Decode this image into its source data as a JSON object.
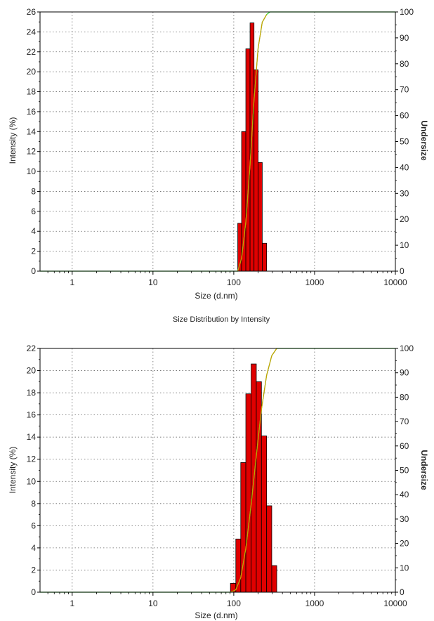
{
  "charts": [
    {
      "ylabel_left": "Intensity (%)",
      "ylabel_right": "Undersize",
      "xlabel": "Size (d.nm)",
      "caption": "Size Distribution by Intensity"
    },
    {
      "ylabel_left": "Intensity (%)",
      "ylabel_right": "Undersize",
      "xlabel": "Size (d.nm)",
      "caption": ""
    }
  ],
  "colors": {
    "bar": "#e00000",
    "bar_edge": "#000000",
    "cumulative": "#33dd33",
    "fit": "#c8a000"
  },
  "chart_data": [
    {
      "type": "bar",
      "x_scale": "log",
      "xlim": [
        0.4,
        10000
      ],
      "x_ticks": [
        1,
        10,
        100,
        1000,
        10000
      ],
      "ylim_left": [
        0,
        26
      ],
      "y_ticks_left": [
        0,
        2,
        4,
        6,
        8,
        10,
        12,
        14,
        16,
        18,
        20,
        22,
        24,
        26
      ],
      "ylim_right": [
        0,
        100
      ],
      "y_ticks_right": [
        0,
        10,
        20,
        30,
        40,
        50,
        60,
        70,
        80,
        90,
        100
      ],
      "grid": true,
      "bins": [
        {
          "x0": 112,
          "x1": 125,
          "value": 4.8
        },
        {
          "x0": 125,
          "x1": 141,
          "value": 14.0
        },
        {
          "x0": 141,
          "x1": 159,
          "value": 22.3
        },
        {
          "x0": 159,
          "x1": 178,
          "value": 24.9
        },
        {
          "x0": 178,
          "x1": 200,
          "value": 20.2
        },
        {
          "x0": 200,
          "x1": 225,
          "value": 10.9
        },
        {
          "x0": 225,
          "x1": 255,
          "value": 2.8
        }
      ],
      "cumulative": {
        "x": [
          0.4,
          112,
          125,
          141,
          159,
          178,
          200,
          225,
          255,
          280,
          320,
          10000
        ],
        "y": [
          0,
          0,
          5,
          19,
          41,
          66,
          86,
          96,
          99,
          100,
          100,
          100
        ]
      }
    },
    {
      "type": "bar",
      "x_scale": "log",
      "xlim": [
        0.4,
        10000
      ],
      "x_ticks": [
        1,
        10,
        100,
        1000,
        10000
      ],
      "ylim_left": [
        0,
        22
      ],
      "y_ticks_left": [
        0,
        2,
        4,
        6,
        8,
        10,
        12,
        14,
        16,
        18,
        20,
        22
      ],
      "ylim_right": [
        0,
        100
      ],
      "y_ticks_right": [
        0,
        10,
        20,
        30,
        40,
        50,
        60,
        70,
        80,
        90,
        100
      ],
      "grid": true,
      "bins": [
        {
          "x0": 91,
          "x1": 106,
          "value": 0.8
        },
        {
          "x0": 106,
          "x1": 122,
          "value": 4.8
        },
        {
          "x0": 122,
          "x1": 141,
          "value": 11.7
        },
        {
          "x0": 141,
          "x1": 164,
          "value": 17.9
        },
        {
          "x0": 164,
          "x1": 190,
          "value": 20.6
        },
        {
          "x0": 190,
          "x1": 220,
          "value": 19.0
        },
        {
          "x0": 220,
          "x1": 255,
          "value": 14.1
        },
        {
          "x0": 255,
          "x1": 295,
          "value": 7.8
        },
        {
          "x0": 295,
          "x1": 340,
          "value": 2.4
        }
      ],
      "cumulative": {
        "x": [
          0.4,
          91,
          106,
          122,
          141,
          164,
          190,
          220,
          255,
          295,
          340,
          10000
        ],
        "y": [
          0,
          0,
          1,
          6,
          18,
          36,
          56,
          75,
          89,
          97,
          100,
          100
        ]
      }
    }
  ]
}
